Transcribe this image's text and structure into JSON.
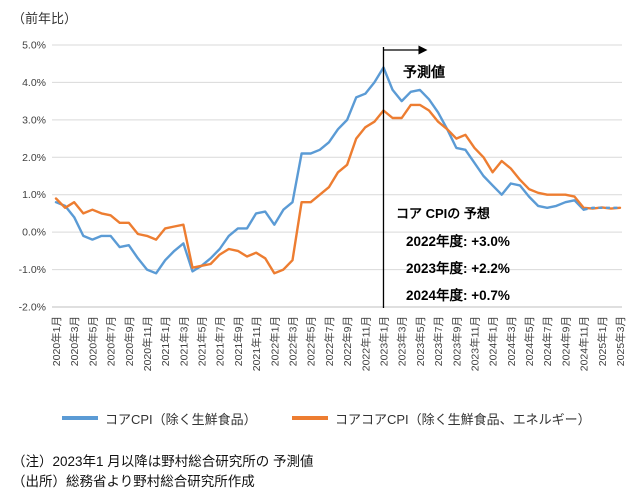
{
  "chart_data": {
    "type": "line",
    "title": "（前年比）",
    "ylim": [
      -2.0,
      5.0
    ],
    "grid": true,
    "legend_position": "bottom",
    "y_ticks": [
      "5.0%",
      "4.0%",
      "3.0%",
      "2.0%",
      "1.0%",
      "0.0%",
      "-1.0%",
      "-2.0%"
    ],
    "x_tick_every": 2,
    "x_tick_labels": [
      "2020年1月",
      "2020年3月",
      "2020年5月",
      "2020年7月",
      "2020年9月",
      "2020年11月",
      "2021年1月",
      "2021年3月",
      "2021年5月",
      "2021年7月",
      "2021年9月",
      "2021年11月",
      "2022年1月",
      "2022年3月",
      "2022年5月",
      "2022年7月",
      "2022年9月",
      "2022年11月",
      "2023年1月",
      "2023年3月",
      "2023年5月",
      "2023年7月",
      "2023年9月",
      "2023年11月",
      "2024年1月",
      "2024年3月",
      "2024年5月",
      "2024年7月",
      "2024年9月",
      "2024年11月",
      "2025年1月",
      "2025年3月"
    ],
    "series": [
      {
        "name": "コアCPI（除く生鮮食品）",
        "color": "#5B9BD5",
        "dashed_from_index": 58,
        "values": [
          0.8,
          0.7,
          0.4,
          -0.1,
          -0.2,
          -0.1,
          -0.1,
          -0.4,
          -0.35,
          -0.7,
          -1.0,
          -1.1,
          -0.75,
          -0.5,
          -0.3,
          -1.05,
          -0.9,
          -0.7,
          -0.45,
          -0.1,
          0.1,
          0.1,
          0.5,
          0.55,
          0.2,
          0.6,
          0.8,
          2.1,
          2.1,
          2.2,
          2.4,
          2.75,
          3.0,
          3.6,
          3.7,
          4.0,
          4.4,
          3.8,
          3.5,
          3.75,
          3.8,
          3.55,
          3.2,
          2.75,
          2.25,
          2.2,
          1.85,
          1.5,
          1.25,
          1.0,
          1.3,
          1.25,
          0.95,
          0.7,
          0.65,
          0.7,
          0.8,
          0.85,
          0.6,
          0.65,
          0.65,
          0.65,
          0.65
        ]
      },
      {
        "name": "コアコアCPI（除く生鮮食品、エネルギー）",
        "color": "#ED7D31",
        "values": [
          0.9,
          0.65,
          0.8,
          0.5,
          0.6,
          0.5,
          0.45,
          0.25,
          0.25,
          -0.05,
          -0.1,
          -0.2,
          0.1,
          0.15,
          0.2,
          -0.95,
          -0.9,
          -0.85,
          -0.6,
          -0.45,
          -0.5,
          -0.65,
          -0.55,
          -0.7,
          -1.1,
          -1.0,
          -0.75,
          0.8,
          0.8,
          1.0,
          1.2,
          1.6,
          1.8,
          2.5,
          2.8,
          2.95,
          3.25,
          3.05,
          3.05,
          3.4,
          3.4,
          3.25,
          2.95,
          2.75,
          2.5,
          2.6,
          2.25,
          2.0,
          1.6,
          1.9,
          1.7,
          1.4,
          1.15,
          1.05,
          1.0,
          1.0,
          1.0,
          0.95,
          0.65,
          0.63,
          0.66,
          0.63,
          0.65
        ]
      }
    ],
    "forecast": {
      "label": "予測値",
      "start_index": 36
    },
    "annotation": {
      "title": "コア CPIの 予想",
      "lines": [
        "2022年度: +3.0%",
        "2023年度: +2.2%",
        "2024年度: +0.7%"
      ]
    }
  },
  "footnotes": {
    "note": "（注）2023年1 月以降は野村総合研究所の 予測値",
    "source": "（出所）総務省より野村総合研究所作成"
  }
}
